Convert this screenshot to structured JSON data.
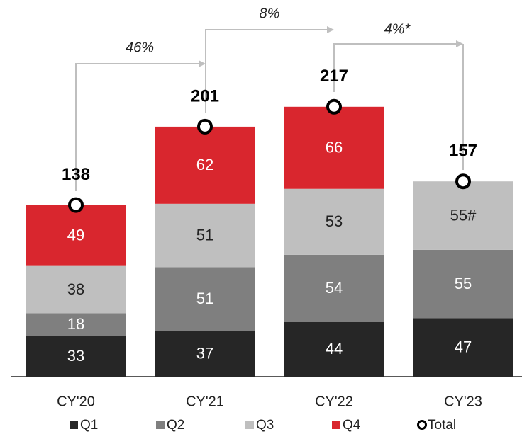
{
  "chart_data": {
    "type": "stacked_bar",
    "categories": [
      "CY'20",
      "CY'21",
      "CY'22",
      "CY'23"
    ],
    "series": [
      {
        "name": "Q1",
        "color": "#262626",
        "values": [
          33,
          37,
          44,
          47
        ]
      },
      {
        "name": "Q2",
        "color": "#7f7f7f",
        "values": [
          18,
          51,
          54,
          55
        ]
      },
      {
        "name": "Q3",
        "color": "#bfbfbf",
        "values": [
          38,
          51,
          53,
          55
        ],
        "value_labels": [
          "38",
          "51",
          "53",
          "55#"
        ]
      },
      {
        "name": "Q4",
        "color": "#d9262e",
        "values": [
          49,
          62,
          66,
          null
        ]
      }
    ],
    "totals": {
      "name": "Total",
      "values": [
        138,
        201,
        217,
        157
      ]
    },
    "annotations": [
      "46%",
      "8%",
      "4%*"
    ],
    "ylim": [
      0,
      300
    ]
  }
}
